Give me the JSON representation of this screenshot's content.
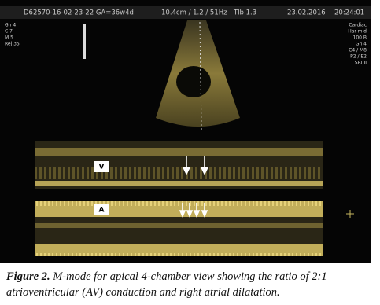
{
  "header": {
    "patient_id": "D62570-16-02-23-22 GA=36w4d",
    "settings": "10.4cm / 1.2 / 51Hz",
    "tib": "Tlb 1.3",
    "date": "23.02.2016",
    "time": "20:24:01"
  },
  "left_params": [
    "Gn 4",
    "C 7",
    "M 5",
    "Rej 35"
  ],
  "right_params": [
    "Cardiac",
    "Har-mid",
    "100 B",
    "Gn 4",
    "C4 / M8",
    "P2 / E2",
    "SRI II"
  ],
  "labels": {
    "ventricle": "V",
    "atrium": "A"
  },
  "caption": {
    "label": "Figure 2.",
    "text": "M-mode for apical 4-chamber view showing the ratio of 2:1 atrioventricular (AV) conduction and right atrial dilatation."
  }
}
